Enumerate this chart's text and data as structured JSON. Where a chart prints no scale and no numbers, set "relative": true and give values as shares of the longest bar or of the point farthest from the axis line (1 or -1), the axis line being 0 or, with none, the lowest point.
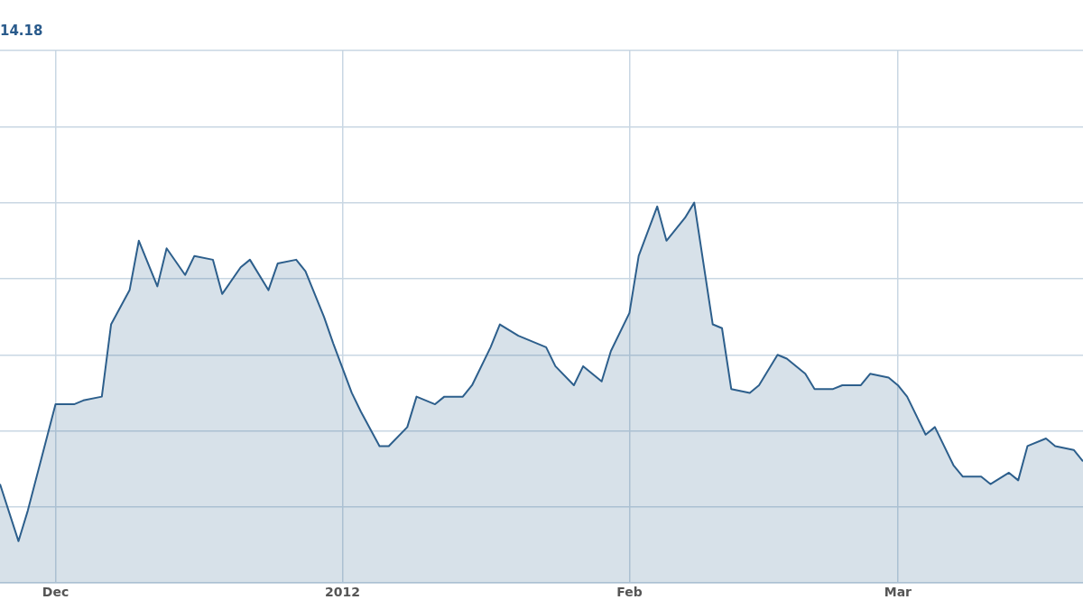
{
  "chart_data": {
    "type": "area",
    "title": "14.18",
    "relative": true,
    "grid": true,
    "marker": "none",
    "line_style": "solid",
    "xlim": [
      "2011-11-25",
      "2012-03-21"
    ],
    "xticks": [
      {
        "value": "2011-12-01",
        "label": "Dec"
      },
      {
        "value": "2012-01-01",
        "label": "2012"
      },
      {
        "value": "2012-02-01",
        "label": "Feb"
      },
      {
        "value": "2012-03-01",
        "label": "Mar"
      }
    ],
    "x": [
      "2011-11-25",
      "2011-11-27",
      "2011-11-28",
      "2011-12-01",
      "2011-12-03",
      "2011-12-04",
      "2011-12-06",
      "2011-12-07",
      "2011-12-09",
      "2011-12-10",
      "2011-12-12",
      "2011-12-13",
      "2011-12-15",
      "2011-12-16",
      "2011-12-18",
      "2011-12-19",
      "2011-12-21",
      "2011-12-22",
      "2011-12-24",
      "2011-12-25",
      "2011-12-27",
      "2011-12-28",
      "2011-12-30",
      "2011-12-31",
      "2012-01-02",
      "2012-01-03",
      "2012-01-05",
      "2012-01-06",
      "2012-01-08",
      "2012-01-09",
      "2012-01-11",
      "2012-01-12",
      "2012-01-14",
      "2012-01-15",
      "2012-01-17",
      "2012-01-18",
      "2012-01-20",
      "2012-01-21",
      "2012-01-23",
      "2012-01-24",
      "2012-01-26",
      "2012-01-27",
      "2012-01-29",
      "2012-01-30",
      "2012-02-01",
      "2012-02-02",
      "2012-02-04",
      "2012-02-05",
      "2012-02-07",
      "2012-02-08",
      "2012-02-10",
      "2012-02-11",
      "2012-02-12",
      "2012-02-14",
      "2012-02-15",
      "2012-02-17",
      "2012-02-18",
      "2012-02-20",
      "2012-02-21",
      "2012-02-23",
      "2012-02-24",
      "2012-02-26",
      "2012-02-27",
      "2012-02-29",
      "2012-03-01",
      "2012-03-02",
      "2012-03-04",
      "2012-03-05",
      "2012-03-07",
      "2012-03-08",
      "2012-03-10",
      "2012-03-11",
      "2012-03-13",
      "2012-03-14",
      "2012-03-15",
      "2012-03-17",
      "2012-03-18",
      "2012-03-20",
      "2012-03-21"
    ],
    "series": [
      {
        "color": "#2d5f8c",
        "values": [
          0.26,
          0.11,
          0.19,
          0.47,
          0.47,
          0.48,
          0.49,
          0.68,
          0.77,
          0.9,
          0.78,
          0.88,
          0.81,
          0.86,
          0.85,
          0.76,
          0.83,
          0.85,
          0.77,
          0.84,
          0.85,
          0.82,
          0.7,
          0.63,
          0.5,
          0.45,
          0.36,
          0.36,
          0.41,
          0.49,
          0.47,
          0.49,
          0.49,
          0.52,
          0.62,
          0.68,
          0.65,
          0.64,
          0.62,
          0.57,
          0.52,
          0.57,
          0.53,
          0.61,
          0.71,
          0.86,
          0.99,
          0.9,
          0.96,
          1,
          0.68,
          0.67,
          0.51,
          0.5,
          0.52,
          0.6,
          0.59,
          0.55,
          0.51,
          0.51,
          0.52,
          0.52,
          0.55,
          0.54,
          0.52,
          0.49,
          0.39,
          0.41,
          0.31,
          0.28,
          0.28,
          0.26,
          0.29,
          0.27,
          0.36,
          0.38,
          0.36,
          0.35,
          0.32
        ]
      }
    ]
  }
}
